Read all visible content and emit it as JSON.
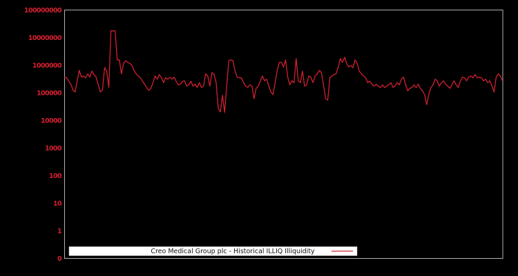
{
  "figure": {
    "background": "#000000",
    "axes_border_color": "#b3b3b3",
    "line_color": "#d32030",
    "tick_label_color": "#d32030",
    "legend": {
      "label": "Creo Medical Group plc - Historical ILLIQ Illiquidity",
      "background": "#ffffff",
      "border_color": "#bbbbbb",
      "text_color": "#111111",
      "line_sample_color": "#d32030"
    }
  },
  "chart_data": {
    "type": "line",
    "title": "Creo Medical Group plc - Historical ILLIQ Illiquidity",
    "xlabel": "",
    "ylabel": "",
    "yscale": "symlog",
    "ylim": [
      0,
      100000000
    ],
    "grid": false,
    "legend_position": "bottom-center",
    "x_axis_labels_visible": false,
    "yticks": [
      {
        "label": "100000000",
        "value": 100000000
      },
      {
        "label": "10000000",
        "value": 10000000
      },
      {
        "label": "1000000",
        "value": 1000000
      },
      {
        "label": "100000",
        "value": 100000
      },
      {
        "label": "10000",
        "value": 10000
      },
      {
        "label": "1000",
        "value": 1000
      },
      {
        "label": "100",
        "value": 100
      },
      {
        "label": "10",
        "value": 10
      },
      {
        "label": "1",
        "value": 1
      },
      {
        "label": "0",
        "value": 0
      }
    ],
    "series": [
      {
        "name": "Creo Medical Group plc - Historical ILLIQ Illiquidity",
        "values": [
          380000.0,
          360000.0,
          270000.0,
          210000.0,
          130000.0,
          110000.0,
          280000.0,
          670000.0,
          380000.0,
          420000.0,
          360000.0,
          500000.0,
          380000.0,
          630000.0,
          470000.0,
          380000.0,
          200000.0,
          110000.0,
          130000.0,
          840000.0,
          630000.0,
          160000.0,
          18000000.0,
          18000000.0,
          18000000.0,
          1600000.0,
          1600000.0,
          500000.0,
          1200000.0,
          1500000.0,
          1300000.0,
          1200000.0,
          1000000.0,
          670000.0,
          500000.0,
          420000.0,
          360000.0,
          270000.0,
          210000.0,
          160000.0,
          126000.0,
          150000.0,
          240000.0,
          420000.0,
          320000.0,
          470000.0,
          360000.0,
          240000.0,
          360000.0,
          320000.0,
          380000.0,
          320000.0,
          380000.0,
          270000.0,
          200000.0,
          210000.0,
          270000.0,
          280000.0,
          180000.0,
          200000.0,
          270000.0,
          180000.0,
          210000.0,
          160000.0,
          240000.0,
          160000.0,
          180000.0,
          500000.0,
          420000.0,
          180000.0,
          560000.0,
          470000.0,
          240000.0,
          28000.0,
          21000.0,
          84000.0,
          20000.0,
          180000.0,
          1500000.0,
          1600000.0,
          1500000.0,
          630000.0,
          380000.0,
          360000.0,
          360000.0,
          240000.0,
          180000.0,
          160000.0,
          200000.0,
          180000.0,
          63000.0,
          150000.0,
          180000.0,
          280000.0,
          420000.0,
          280000.0,
          320000.0,
          180000.0,
          110000.0,
          89000.0,
          240000.0,
          670000.0,
          1300000.0,
          1300000.0,
          890000.0,
          1600000.0,
          380000.0,
          200000.0,
          280000.0,
          240000.0,
          1800000.0,
          280000.0,
          240000.0,
          630000.0,
          180000.0,
          200000.0,
          420000.0,
          380000.0,
          240000.0,
          420000.0,
          500000.0,
          670000.0,
          560000.0,
          200000.0,
          63000.0,
          56000.0,
          360000.0,
          420000.0,
          470000.0,
          500000.0,
          890000.0,
          1800000.0,
          1300000.0,
          2000000.0,
          1200000.0,
          890000.0,
          1000000.0,
          840000.0,
          1600000.0,
          1200000.0,
          630000.0,
          500000.0,
          420000.0,
          360000.0,
          240000.0,
          270000.0,
          210000.0,
          180000.0,
          210000.0,
          180000.0,
          160000.0,
          200000.0,
          160000.0,
          180000.0,
          200000.0,
          240000.0,
          160000.0,
          180000.0,
          240000.0,
          200000.0,
          320000.0,
          380000.0,
          200000.0,
          120000.0,
          150000.0,
          160000.0,
          200000.0,
          160000.0,
          210000.0,
          150000.0,
          120000.0,
          89000.0,
          38000.0,
          89000.0,
          160000.0,
          200000.0,
          320000.0,
          280000.0,
          180000.0,
          240000.0,
          280000.0,
          210000.0,
          180000.0,
          150000.0,
          200000.0,
          280000.0,
          200000.0,
          160000.0,
          270000.0,
          380000.0,
          360000.0,
          280000.0,
          380000.0,
          420000.0,
          360000.0,
          470000.0,
          360000.0,
          380000.0,
          360000.0,
          280000.0,
          320000.0,
          240000.0,
          280000.0,
          180000.0,
          110000.0,
          380000.0,
          500000.0,
          420000.0,
          280000.0
        ]
      }
    ]
  }
}
